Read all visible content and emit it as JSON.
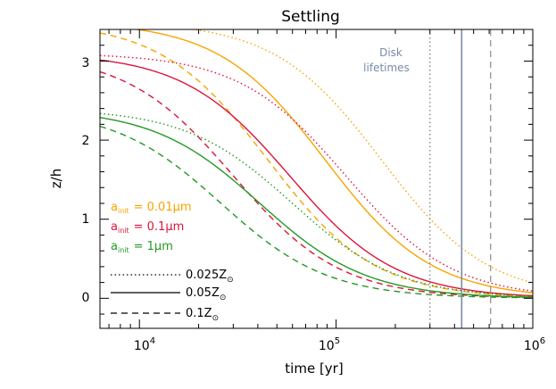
{
  "chart_data": {
    "type": "line",
    "title": "Settling",
    "xlabel": "time [yr]",
    "ylabel": "z/h",
    "xscale": "log",
    "xlim": [
      6300,
      1000000
    ],
    "ylim": [
      -0.38,
      3.4
    ],
    "grid": false,
    "x_ticks": [
      {
        "value": 10000,
        "base": "10",
        "exp": "4"
      },
      {
        "value": 100000,
        "base": "10",
        "exp": "5"
      },
      {
        "value": 1000000,
        "base": "10",
        "exp": "6"
      }
    ],
    "y_ticks": [
      {
        "value": 0,
        "label": "0"
      },
      {
        "value": 1,
        "label": "1"
      },
      {
        "value": 2,
        "label": "2"
      },
      {
        "value": 3,
        "label": "3"
      }
    ],
    "colors": {
      "orange": "#f7a400",
      "red": "#dc143c",
      "green": "#229922",
      "lifetime": "#7a8aa8",
      "lifetime_dotted": "#8a8a8a",
      "lifetime_dashed": "#9a9a9a",
      "axis": "#000000"
    },
    "series": [
      {
        "name": "0.01 µm, 0.025 Z☉",
        "color": "orange",
        "style": "dotted",
        "z0": 3.5,
        "t_half": 170000,
        "s": 1.6
      },
      {
        "name": "0.01 µm, 0.05 Z☉",
        "color": "orange",
        "style": "solid",
        "z0": 3.5,
        "t_half": 88000,
        "s": 1.6
      },
      {
        "name": "0.01 µm, 0.1 Z☉",
        "color": "orange",
        "style": "dashed",
        "z0": 3.5,
        "t_half": 45000,
        "s": 1.6
      },
      {
        "name": "0.1 µm, 0.025 Z☉",
        "color": "red",
        "style": "dotted",
        "z0": 3.1,
        "t_half": 112000,
        "s": 1.6
      },
      {
        "name": "0.1 µm, 0.05 Z☉",
        "color": "red",
        "style": "solid",
        "z0": 3.1,
        "t_half": 58000,
        "s": 1.6
      },
      {
        "name": "0.1 µm, 0.1 Z☉",
        "color": "red",
        "style": "dashed",
        "z0": 3.1,
        "t_half": 30000,
        "s": 1.6
      },
      {
        "name": "1 µm, 0.025 Z☉",
        "color": "green",
        "style": "dotted",
        "z0": 2.4,
        "t_half": 60000,
        "s": 1.6
      },
      {
        "name": "1 µm, 0.05 Z☉",
        "color": "green",
        "style": "solid",
        "z0": 2.4,
        "t_half": 41000,
        "s": 1.6
      },
      {
        "name": "1 µm, 0.1 Z☉",
        "color": "green",
        "style": "dashed",
        "z0": 2.4,
        "t_half": 26000,
        "s": 1.6
      }
    ],
    "disk_lifetimes": {
      "label_line1": "Disk",
      "label_line2": "lifetimes",
      "lines": [
        {
          "x": 300000,
          "style": "dotted",
          "color": "lifetime_dotted"
        },
        {
          "x": 435000,
          "style": "solid",
          "color": "lifetime"
        },
        {
          "x": 610000,
          "style": "dashed",
          "color": "lifetime_dashed"
        }
      ]
    },
    "legend_sizes": [
      {
        "prefix": "a",
        "sub": "init",
        "value": "= 0.01",
        "unit": "μm",
        "color": "orange"
      },
      {
        "prefix": "a",
        "sub": "init",
        "value": "= 0.1",
        "unit": "μm",
        "color": "red"
      },
      {
        "prefix": "a",
        "sub": "init",
        "value": "= 1",
        "unit": "μm",
        "color": "green"
      }
    ],
    "legend_metallicity": [
      {
        "style": "dotted",
        "value": "0.025Z",
        "sun": "⊙"
      },
      {
        "style": "solid",
        "value": "0.05Z",
        "sun": "⊙"
      },
      {
        "style": "dashed",
        "value": "0.1Z",
        "sun": "⊙"
      }
    ]
  }
}
